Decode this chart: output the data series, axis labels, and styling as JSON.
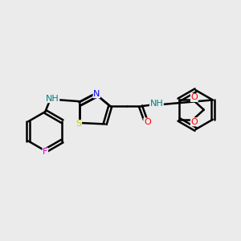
{
  "bg_color": "#ebebeb",
  "bond_color": "#000000",
  "line_width": 1.8,
  "figsize": [
    3.0,
    3.0
  ],
  "dpi": 100,
  "atom_colors": {
    "N": "#008080",
    "N_blue": "#0000ff",
    "S": "#cccc00",
    "O": "#ff0000",
    "F": "#cc00cc",
    "C": "#000000",
    "H": "#008080"
  }
}
